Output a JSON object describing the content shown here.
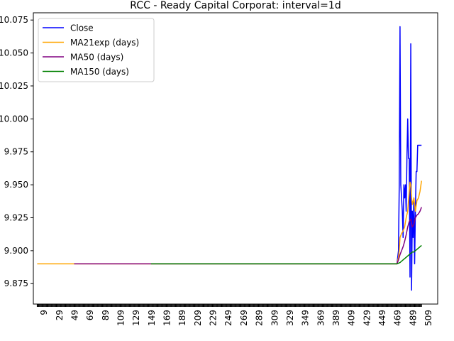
{
  "chart_data": {
    "type": "line",
    "title": "RCC - Ready Capital Corporat: interval=1d",
    "xlim": [
      -5,
      521
    ],
    "ylim": [
      9.8595,
      10.0805
    ],
    "y_ticks": [
      9.875,
      9.9,
      9.925,
      9.95,
      9.975,
      10.0,
      10.025,
      10.05,
      10.075
    ],
    "y_tick_labels": [
      "9.875",
      "9.900",
      "9.925",
      "9.950",
      "9.975",
      "10.000",
      "10.025",
      "10.050",
      "10.075"
    ],
    "x_ticks": [
      9,
      29,
      49,
      69,
      89,
      109,
      129,
      149,
      169,
      189,
      209,
      229,
      249,
      269,
      289,
      309,
      329,
      349,
      369,
      389,
      409,
      429,
      449,
      469,
      489,
      509
    ],
    "x_tick_labels": [
      "9",
      "29",
      "49",
      "69",
      "89",
      "109",
      "129",
      "149",
      "169",
      "189",
      "209",
      "229",
      "249",
      "269",
      "289",
      "309",
      "329",
      "349",
      "369",
      "389",
      "409",
      "429",
      "449",
      "469",
      "489",
      "509"
    ],
    "legend_position": "top-left",
    "grid": false,
    "series": [
      {
        "name": "Close",
        "color": "#0000ff",
        "points": [
          [
            468,
            9.89
          ],
          [
            470,
            9.9
          ],
          [
            471,
            9.95
          ],
          [
            472,
            10.07
          ],
          [
            473,
            9.95
          ],
          [
            474,
            9.94
          ],
          [
            475,
            9.93
          ],
          [
            476,
            9.91
          ],
          [
            477,
            9.95
          ],
          [
            478,
            9.94
          ],
          [
            479,
            9.95
          ],
          [
            480,
            9.93
          ],
          [
            481,
            9.97
          ],
          [
            482,
            10.0
          ],
          [
            483,
            9.97
          ],
          [
            484,
            9.97
          ],
          [
            485,
            9.88
          ],
          [
            486,
            10.057
          ],
          [
            487,
            9.87
          ],
          [
            488,
            9.93
          ],
          [
            489,
            9.91
          ],
          [
            490,
            9.94
          ],
          [
            491,
            9.89
          ],
          [
            492,
            9.93
          ],
          [
            493,
            9.96
          ],
          [
            494,
            9.96
          ],
          [
            495,
            9.98
          ],
          [
            500,
            9.98
          ]
        ]
      },
      {
        "name": "MA21exp (days)",
        "color": "#ffa500",
        "points": [
          [
            0,
            9.89
          ],
          [
            468,
            9.89
          ],
          [
            470,
            9.895
          ],
          [
            471,
            9.9
          ],
          [
            472,
            9.91
          ],
          [
            474,
            9.913
          ],
          [
            476,
            9.915
          ],
          [
            478,
            9.918
          ],
          [
            480,
            9.925
          ],
          [
            482,
            9.93
          ],
          [
            484,
            9.945
          ],
          [
            485,
            9.952
          ],
          [
            486,
            9.95
          ],
          [
            487,
            9.94
          ],
          [
            488,
            9.935
          ],
          [
            490,
            9.94
          ],
          [
            492,
            9.93
          ],
          [
            494,
            9.938
          ],
          [
            496,
            9.94
          ],
          [
            498,
            9.945
          ],
          [
            500,
            9.953
          ]
        ]
      },
      {
        "name": "MA50 (days)",
        "color": "#800080",
        "points": [
          [
            48,
            9.89
          ],
          [
            468,
            9.89
          ],
          [
            470,
            9.893
          ],
          [
            472,
            9.897
          ],
          [
            474,
            9.9
          ],
          [
            476,
            9.903
          ],
          [
            478,
            9.907
          ],
          [
            480,
            9.912
          ],
          [
            482,
            9.918
          ],
          [
            484,
            9.922
          ],
          [
            486,
            9.924
          ],
          [
            488,
            9.918
          ],
          [
            490,
            9.92
          ],
          [
            492,
            9.925
          ],
          [
            494,
            9.927
          ],
          [
            496,
            9.928
          ],
          [
            498,
            9.93
          ],
          [
            500,
            9.933
          ]
        ]
      },
      {
        "name": "MA150 (days)",
        "color": "#008000",
        "points": [
          [
            148,
            9.89
          ],
          [
            468,
            9.89
          ],
          [
            472,
            9.891
          ],
          [
            476,
            9.893
          ],
          [
            480,
            9.895
          ],
          [
            484,
            9.897
          ],
          [
            488,
            9.899
          ],
          [
            490,
            9.899
          ],
          [
            492,
            9.9
          ],
          [
            494,
            9.901
          ],
          [
            496,
            9.902
          ],
          [
            498,
            9.903
          ],
          [
            500,
            9.904
          ]
        ]
      }
    ]
  }
}
